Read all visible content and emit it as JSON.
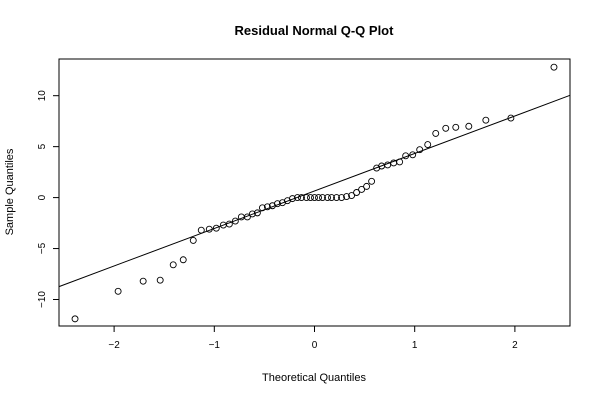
{
  "chart_data": {
    "type": "scatter",
    "title": "Residual Normal Q-Q Plot",
    "xlabel": "Theoretical Quantiles",
    "ylabel": "Sample Quantiles",
    "xlim": [
      -2.55,
      2.55
    ],
    "ylim": [
      -12.6,
      13.6
    ],
    "x_ticks": [
      -2,
      -1,
      0,
      1,
      2
    ],
    "x_tick_labels": [
      "−2",
      "−1",
      "0",
      "1",
      "2"
    ],
    "y_ticks": [
      -10,
      -5,
      0,
      5,
      10
    ],
    "y_tick_labels": [
      "−10",
      "−5",
      "0",
      "5",
      "10"
    ],
    "grid": false,
    "legend": "none",
    "marker": "open-circle",
    "reference_line": {
      "intercept": 0.65,
      "slope": 3.68
    },
    "points": [
      [
        -2.39,
        -11.9
      ],
      [
        -1.96,
        -9.2
      ],
      [
        -1.71,
        -8.2
      ],
      [
        -1.54,
        -8.1
      ],
      [
        -1.41,
        -6.6
      ],
      [
        -1.31,
        -6.1
      ],
      [
        -1.21,
        -4.2
      ],
      [
        -1.13,
        -3.2
      ],
      [
        -1.05,
        -3.1
      ],
      [
        -0.98,
        -3.0
      ],
      [
        -0.91,
        -2.7
      ],
      [
        -0.85,
        -2.6
      ],
      [
        -0.79,
        -2.3
      ],
      [
        -0.73,
        -1.9
      ],
      [
        -0.67,
        -1.9
      ],
      [
        -0.62,
        -1.6
      ],
      [
        -0.57,
        -1.5
      ],
      [
        -0.52,
        -1.0
      ],
      [
        -0.47,
        -0.9
      ],
      [
        -0.42,
        -0.8
      ],
      [
        -0.37,
        -0.6
      ],
      [
        -0.32,
        -0.5
      ],
      [
        -0.27,
        -0.3
      ],
      [
        -0.22,
        -0.1
      ],
      [
        -0.17,
        0.0
      ],
      [
        -0.13,
        0.0
      ],
      [
        -0.08,
        0.0
      ],
      [
        -0.04,
        0.0
      ],
      [
        0.0,
        0.0
      ],
      [
        0.04,
        0.0
      ],
      [
        0.08,
        0.0
      ],
      [
        0.13,
        0.0
      ],
      [
        0.17,
        0.0
      ],
      [
        0.22,
        0.0
      ],
      [
        0.27,
        0.0
      ],
      [
        0.32,
        0.1
      ],
      [
        0.37,
        0.2
      ],
      [
        0.42,
        0.5
      ],
      [
        0.47,
        0.8
      ],
      [
        0.52,
        1.1
      ],
      [
        0.57,
        1.6
      ],
      [
        0.62,
        2.9
      ],
      [
        0.67,
        3.1
      ],
      [
        0.73,
        3.2
      ],
      [
        0.79,
        3.4
      ],
      [
        0.85,
        3.5
      ],
      [
        0.91,
        4.1
      ],
      [
        0.98,
        4.2
      ],
      [
        1.05,
        4.7
      ],
      [
        1.13,
        5.2
      ],
      [
        1.21,
        6.3
      ],
      [
        1.31,
        6.8
      ],
      [
        1.41,
        6.9
      ],
      [
        1.54,
        7.0
      ],
      [
        1.71,
        7.6
      ],
      [
        1.96,
        7.8
      ],
      [
        2.39,
        12.8
      ]
    ]
  }
}
